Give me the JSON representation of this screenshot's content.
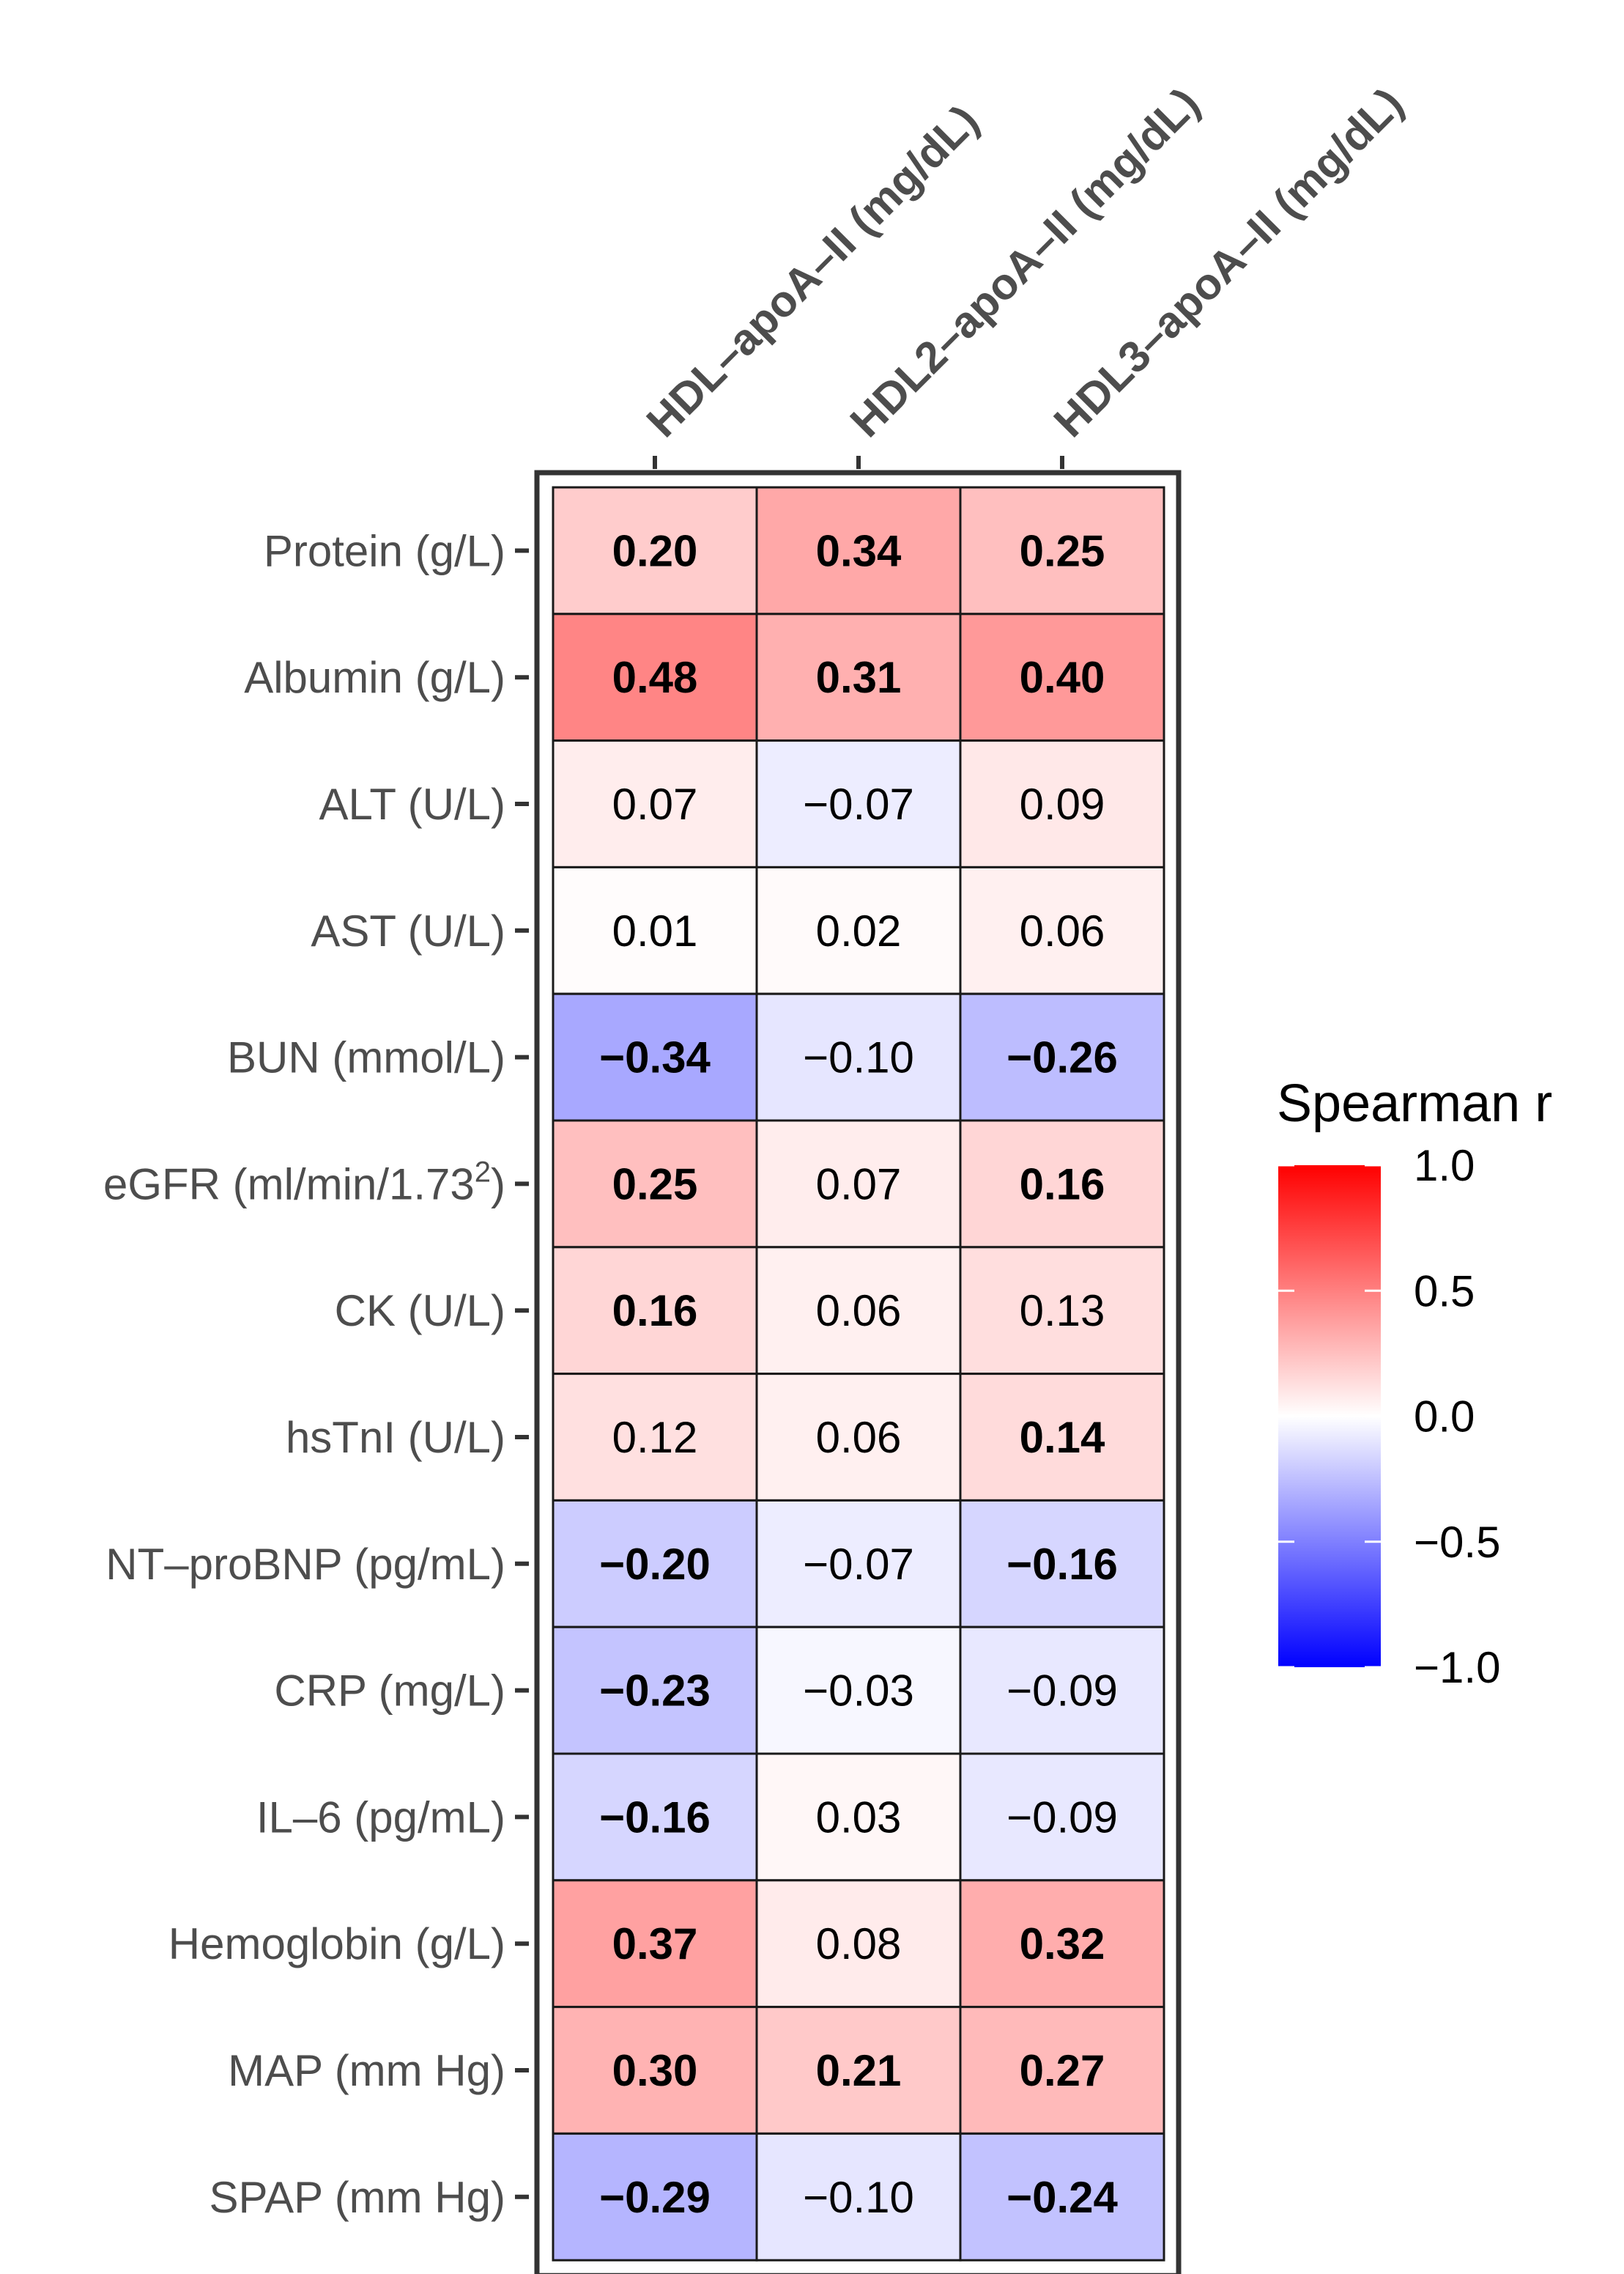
{
  "chart_data": {
    "type": "heatmap",
    "title": "",
    "columns": [
      "HDL–apoA–II (mg/dL)",
      "HDL2–apoA–II (mg/dL)",
      "HDL3–apoA–II (mg/dL)"
    ],
    "rows": [
      {
        "label": "Protein (g/L)"
      },
      {
        "label": "Albumin (g/L)"
      },
      {
        "label": "ALT (U/L)"
      },
      {
        "label": "AST (U/L)"
      },
      {
        "label": "BUN (mmol/L)"
      },
      {
        "label": "eGFR (ml/min/1.73",
        "sup": "2",
        "suffix": ")"
      },
      {
        "label": "CK (U/L)"
      },
      {
        "label": "hsTnI (U/L)"
      },
      {
        "label": "NT–proBNP (pg/mL)"
      },
      {
        "label": "CRP (mg/L)"
      },
      {
        "label": "IL–6 (pg/mL)"
      },
      {
        "label": "Hemoglobin (g/L)"
      },
      {
        "label": "MAP (mm Hg)"
      },
      {
        "label": "SPAP (mm Hg)"
      }
    ],
    "values": [
      [
        0.2,
        0.34,
        0.25
      ],
      [
        0.48,
        0.31,
        0.4
      ],
      [
        0.07,
        -0.07,
        0.09
      ],
      [
        0.01,
        0.02,
        0.06
      ],
      [
        -0.34,
        -0.1,
        -0.26
      ],
      [
        0.25,
        0.07,
        0.16
      ],
      [
        0.16,
        0.06,
        0.13
      ],
      [
        0.12,
        0.06,
        0.14
      ],
      [
        -0.2,
        -0.07,
        -0.16
      ],
      [
        -0.23,
        -0.03,
        -0.09
      ],
      [
        -0.16,
        0.03,
        -0.09
      ],
      [
        0.37,
        0.08,
        0.32
      ],
      [
        0.3,
        0.21,
        0.27
      ],
      [
        -0.29,
        -0.1,
        -0.24
      ]
    ],
    "labels": [
      [
        "0.20",
        "0.34",
        "0.25"
      ],
      [
        "0.48",
        "0.31",
        "0.40"
      ],
      [
        "0.07",
        "−0.07",
        "0.09"
      ],
      [
        "0.01",
        "0.02",
        "0.06"
      ],
      [
        "−0.34",
        "−0.10",
        "−0.26"
      ],
      [
        "0.25",
        "0.07",
        "0.16"
      ],
      [
        "0.16",
        "0.06",
        "0.13"
      ],
      [
        "0.12",
        "0.06",
        "0.14"
      ],
      [
        "−0.20",
        "−0.07",
        "−0.16"
      ],
      [
        "−0.23",
        "−0.03",
        "−0.09"
      ],
      [
        "−0.16",
        "0.03",
        "−0.09"
      ],
      [
        "0.37",
        "0.08",
        "0.32"
      ],
      [
        "0.30",
        "0.21",
        "0.27"
      ],
      [
        "−0.29",
        "−0.10",
        "−0.24"
      ]
    ],
    "significant": [
      [
        true,
        true,
        true
      ],
      [
        true,
        true,
        true
      ],
      [
        false,
        false,
        false
      ],
      [
        false,
        false,
        false
      ],
      [
        true,
        false,
        true
      ],
      [
        true,
        false,
        true
      ],
      [
        true,
        false,
        false
      ],
      [
        false,
        false,
        true
      ],
      [
        true,
        false,
        true
      ],
      [
        true,
        false,
        false
      ],
      [
        true,
        false,
        false
      ],
      [
        true,
        false,
        true
      ],
      [
        true,
        true,
        true
      ],
      [
        true,
        false,
        true
      ]
    ],
    "legend": {
      "title": "Spearman r",
      "placement": "right",
      "range": [
        -1.0,
        1.0
      ],
      "ticks": [
        1.0,
        0.5,
        0.0,
        -0.5,
        -1.0
      ],
      "tick_labels": [
        "1.0",
        "0.5",
        "0.0",
        "−0.5",
        "−1.0"
      ]
    },
    "colors": {
      "low": "#0000ff",
      "mid": "#ffffff",
      "high": "#ff0000",
      "axis_text": "#4d4d4d",
      "cell_border": "#1a1a1a",
      "panel_border": "#333333"
    }
  }
}
